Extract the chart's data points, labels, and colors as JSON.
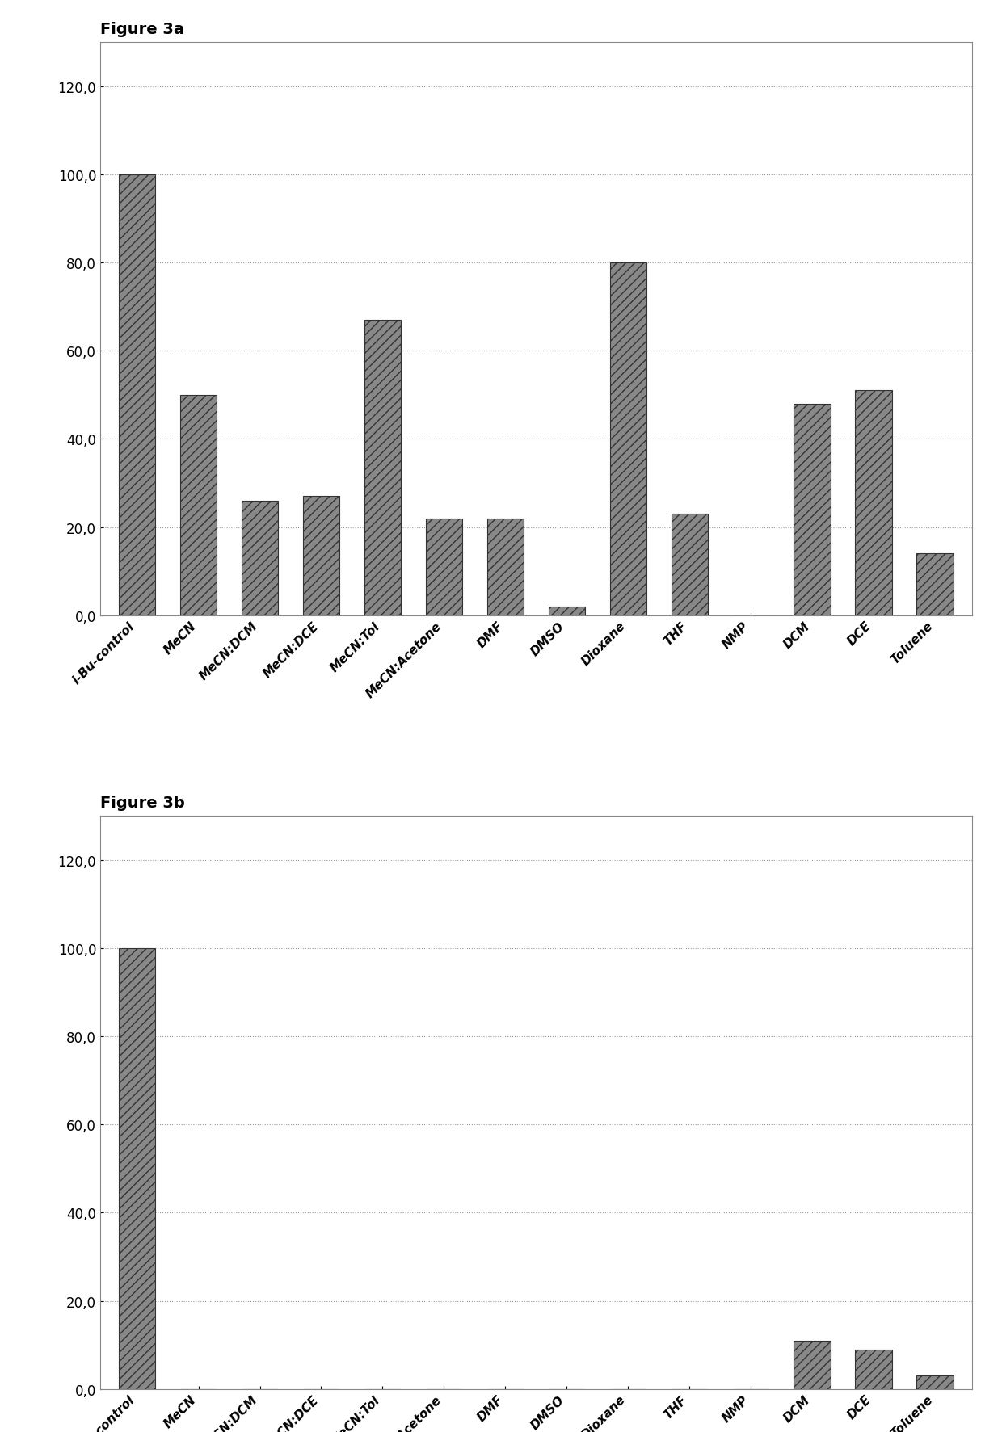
{
  "fig3a": {
    "title": "Figure 3a",
    "categories": [
      "i-Bu-control",
      "MeCN",
      "MeCN:DCM",
      "MeCN:DCE",
      "MeCN:Tol",
      "MeCN:Acetone",
      "DMF",
      "DMSO",
      "Dioxane",
      "THF",
      "NMP",
      "DCM",
      "DCE",
      "Toluene"
    ],
    "values": [
      100,
      50,
      26,
      27,
      67,
      22,
      22,
      2,
      80,
      23,
      0,
      48,
      51,
      14
    ],
    "bar_color": "#888888",
    "ylim": [
      0,
      130
    ],
    "yticks": [
      0,
      20,
      40,
      60,
      80,
      100,
      120
    ],
    "ytick_labels": [
      "0,0",
      "20,0",
      "40,0",
      "60,0",
      "80,0",
      "100,0",
      "120,0"
    ]
  },
  "fig3b": {
    "title": "Figure 3b",
    "categories": [
      "DMF-control",
      "MeCN",
      "MeCN:DCM",
      "MeCN:DCE",
      "MeCN:Tol",
      "MeCN:Acetone",
      "DMF",
      "DMSO",
      "Dioxane",
      "THF",
      "NMP",
      "DCM",
      "DCE",
      "Toluene"
    ],
    "values": [
      100,
      0,
      0,
      0,
      0,
      0,
      0,
      0,
      0,
      0,
      0,
      11,
      9,
      3
    ],
    "bar_color": "#888888",
    "ylim": [
      0,
      130
    ],
    "yticks": [
      0,
      20,
      40,
      60,
      80,
      100,
      120
    ],
    "ytick_labels": [
      "0,0",
      "20,0",
      "40,0",
      "60,0",
      "80,0",
      "100,0",
      "120,0"
    ]
  },
  "background_color": "#ffffff",
  "bar_edge_color": "#333333",
  "grid_color": "#999999",
  "text_color": "#000000",
  "title_fontsize": 14,
  "tick_fontsize": 11,
  "ytick_fontsize": 12,
  "bar_width": 0.6,
  "box_color": "#888888",
  "hatch_pattern": "///"
}
